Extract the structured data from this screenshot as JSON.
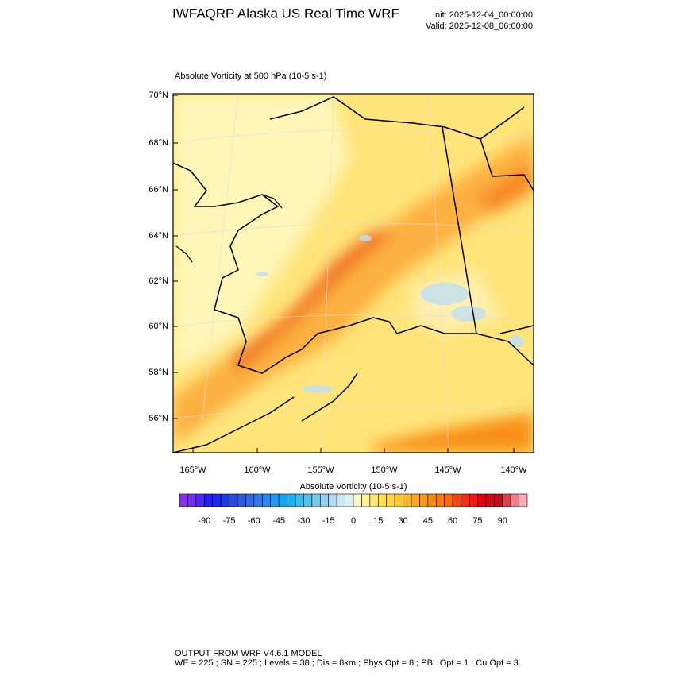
{
  "header": {
    "title": "IWFAQRP Alaska US Real Time WRF",
    "init": "Init: 2025-12-04_00:00:00",
    "valid": "Valid: 2025-12-08_06:00:00"
  },
  "map": {
    "subtitle": "Absolute Vorticity at 500 hPa   (10-5 s-1)",
    "lat_labels": [
      "70°N",
      "68°N",
      "66°N",
      "64°N",
      "62°N",
      "60°N",
      "58°N",
      "56°N"
    ],
    "lon_labels": [
      "165°W",
      "160°W",
      "155°W",
      "150°W",
      "145°W",
      "140°W"
    ]
  },
  "colorbar": {
    "title": "Absolute Vorticity  (10-5 s-1)",
    "range": [
      -105,
      105
    ],
    "ticks": [
      -90,
      -75,
      -60,
      -45,
      -30,
      -15,
      0,
      15,
      30,
      45,
      60,
      75,
      90
    ],
    "colors": [
      "#8a2ee8",
      "#7030ee",
      "#5028f0",
      "#2a1ef0",
      "#1e28ec",
      "#2038e4",
      "#2848e0",
      "#3058dc",
      "#3468e0",
      "#3478e4",
      "#2c88ec",
      "#1e98f0",
      "#10a8f0",
      "#18b4f0",
      "#38bcf0",
      "#58c0ec",
      "#78c8ec",
      "#98d0ec",
      "#b4dcf0",
      "#cce6f4",
      "#dcf0f8",
      "#fffac8",
      "#fff0a0",
      "#ffe878",
      "#ffe050",
      "#ffd840",
      "#fcc830",
      "#fab828",
      "#f8a820",
      "#f89818",
      "#f88810",
      "#f87808",
      "#f86808",
      "#f04810",
      "#f03010",
      "#f01810",
      "#e00010",
      "#d00818",
      "#c01020",
      "#e04050",
      "#f08090",
      "#f8a8b0"
    ]
  },
  "footer": {
    "line1": "OUTPUT FROM WRF V4.6.1 MODEL",
    "line2": "WE = 225 ; SN = 225 ; Levels = 38 ; Dis = 8km ; Phys Opt = 8 ; PBL Opt = 1 ; Cu Opt = 3"
  }
}
